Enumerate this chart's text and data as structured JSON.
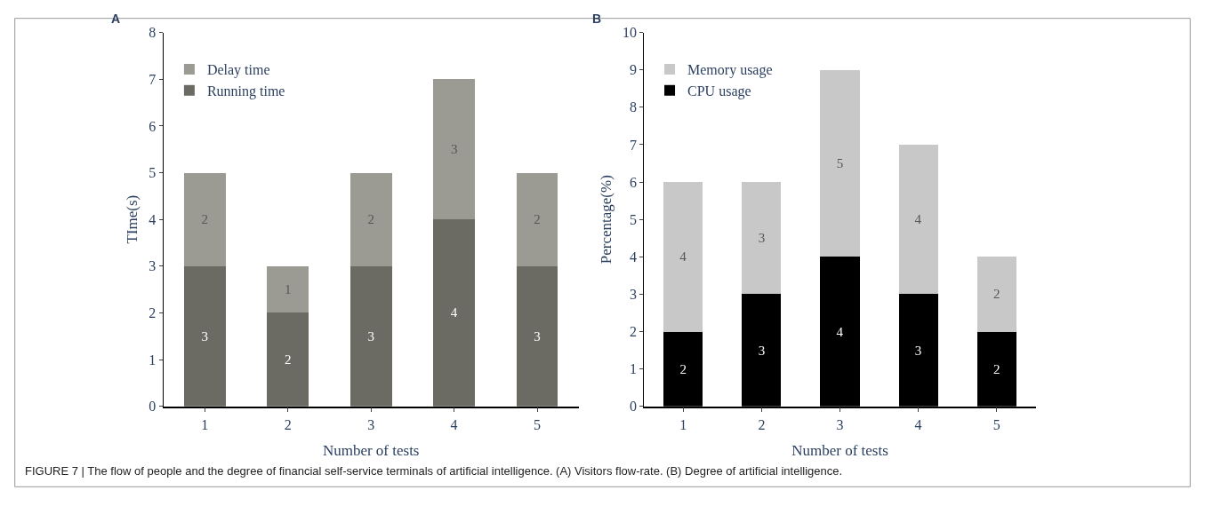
{
  "chart_data": [
    {
      "type": "bar",
      "title": "A",
      "stacked": true,
      "categories": [
        "1",
        "2",
        "3",
        "4",
        "5"
      ],
      "series": [
        {
          "name": "Running time",
          "color": "#6b6b63",
          "values": [
            3,
            2,
            3,
            4,
            3
          ]
        },
        {
          "name": "Delay time",
          "color": "#9b9b93",
          "values": [
            2,
            1,
            2,
            3,
            2
          ]
        }
      ],
      "ylim": [
        0,
        8
      ],
      "yticks": [
        0,
        1,
        2,
        3,
        4,
        5,
        6,
        7,
        8
      ],
      "xlabel": "Number of tests",
      "ylabel": "TIme(s)",
      "legend": "top left",
      "data_labels": true,
      "grid": false,
      "annotations": [
        "FIGURE 7 | The flow of people and the degree of financial self-service terminals of artificial intelligence. (A) Visitors flow-rate. (B) Degree of artificial intelligence."
      ]
    },
    {
      "type": "bar",
      "title": "B",
      "stacked": true,
      "categories": [
        "1",
        "2",
        "3",
        "4",
        "5"
      ],
      "series": [
        {
          "name": "CPU usage",
          "color": "#000000",
          "values": [
            2,
            3,
            4,
            3,
            2
          ]
        },
        {
          "name": "Memory usage",
          "color": "#c8c8c8",
          "values": [
            4,
            3,
            5,
            4,
            2
          ]
        }
      ],
      "ylim": [
        0,
        10
      ],
      "yticks": [
        0,
        1,
        2,
        3,
        4,
        5,
        6,
        7,
        8,
        9,
        10
      ],
      "xlabel": "Number of tests",
      "ylabel": "Percentage(%)",
      "legend": "top left",
      "data_labels": true,
      "grid": false
    }
  ]
}
